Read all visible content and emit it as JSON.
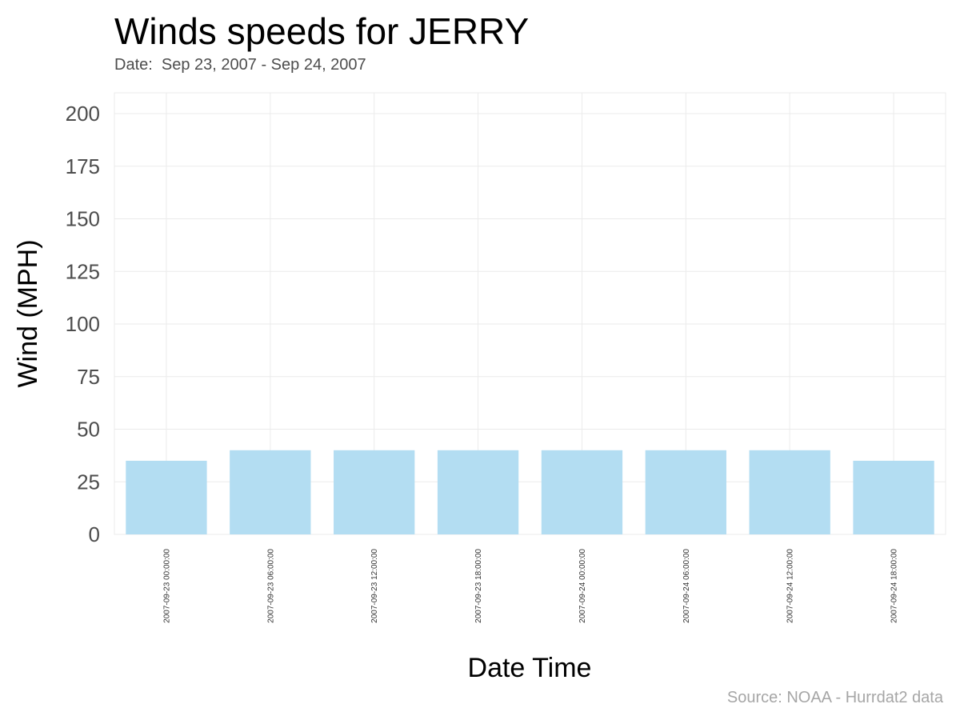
{
  "chart_data": {
    "type": "bar",
    "title": "Winds speeds for JERRY",
    "subtitle": "Date:  Sep 23, 2007 - Sep 24, 2007",
    "caption": "Source: NOAA - Hurrdat2 data",
    "xlabel": "Date Time",
    "ylabel": "Wind (MPH)",
    "categories": [
      "2007-09-23 00:00:00",
      "2007-09-23 06:00:00",
      "2007-09-23 12:00:00",
      "2007-09-23 18:00:00",
      "2007-09-24 00:00:00",
      "2007-09-24 06:00:00",
      "2007-09-24 12:00:00",
      "2007-09-24 18:00:00"
    ],
    "values": [
      35,
      40,
      40,
      40,
      40,
      40,
      40,
      35
    ],
    "ylim": [
      0,
      200
    ],
    "yticks": [
      0,
      25,
      50,
      75,
      100,
      125,
      150,
      175,
      200
    ],
    "bar_color": "#b3ddf2",
    "grid": true
  }
}
